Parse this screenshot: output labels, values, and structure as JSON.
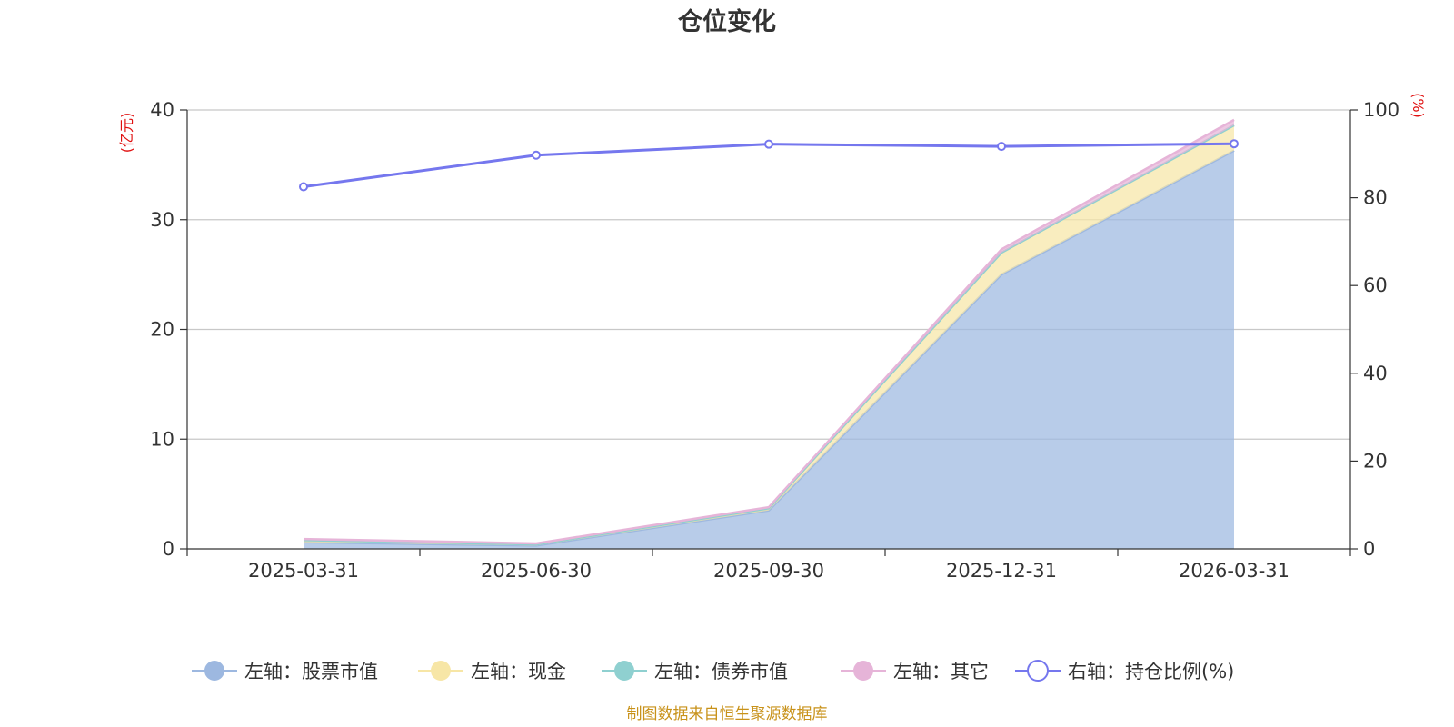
{
  "chart_data": {
    "type": "area",
    "title": "仓位变化",
    "categories": [
      "2025-03-31",
      "2025-06-30",
      "2025-09-30",
      "2025-12-31",
      "2026-03-31"
    ],
    "left_axis": {
      "unit": "(亿元)",
      "ylim": [
        0,
        40
      ],
      "ticks": [
        0,
        10,
        20,
        30,
        40
      ]
    },
    "right_axis": {
      "unit": "(%)",
      "ylim": [
        0,
        100
      ],
      "ticks": [
        0,
        20,
        40,
        60,
        80,
        100
      ]
    },
    "stacked": true,
    "grid": true,
    "legend_position": "bottom",
    "series": [
      {
        "name": "左轴：股票市值",
        "axis": "left",
        "type": "area",
        "color": "#9db8e0",
        "values": [
          0.6,
          0.3,
          3.5,
          25.0,
          36.3
        ]
      },
      {
        "name": "左轴：现金",
        "axis": "left",
        "type": "area",
        "color": "#f7e6a6",
        "values": [
          0.2,
          0.1,
          0.2,
          2.0,
          2.3
        ]
      },
      {
        "name": "左轴：债券市值",
        "axis": "left",
        "type": "area",
        "color": "#8fd0d0",
        "values": [
          0,
          0,
          0,
          0,
          0
        ]
      },
      {
        "name": "左轴：其它",
        "axis": "left",
        "type": "area",
        "color": "#e6b4d8",
        "values": [
          0.1,
          0.1,
          0.1,
          0.3,
          0.5
        ]
      },
      {
        "name": "右轴：持仓比例(%)",
        "axis": "right",
        "type": "line",
        "color": "#7577ee",
        "values": [
          82.5,
          89.7,
          92.2,
          91.7,
          92.3
        ]
      }
    ],
    "source": "制图数据来自恒生聚源数据库"
  }
}
